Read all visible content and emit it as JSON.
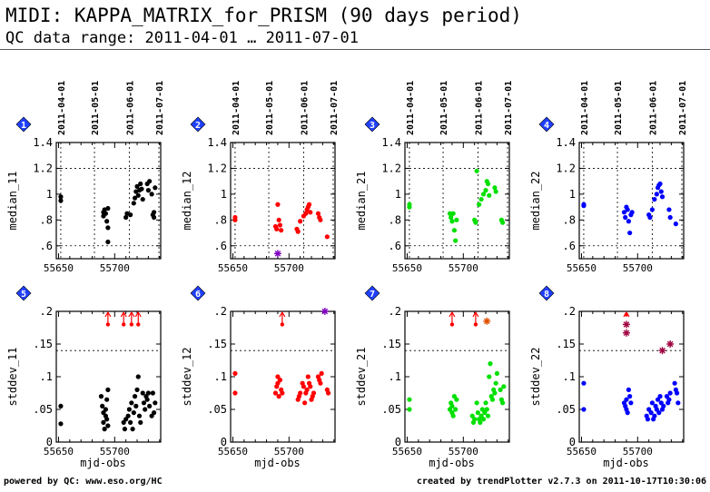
{
  "header": {
    "title": "MIDI: KAPPA_MATRIX_for_PRISM (90 days period)",
    "subtitle": "QC data range: 2011-04-01 … 2011-07-01"
  },
  "footer": {
    "left": "powered by QC: www.eso.org/HC",
    "right": "created by trendPlotter v2.7.3 on 2011-10-17T10:30:06"
  },
  "colors": {
    "black": "#000000",
    "red": "#ff0000",
    "green": "#00e000",
    "blue": "#0000ff",
    "badge": "#2040ff",
    "outlier": "#8000c0"
  },
  "chart_data": [
    {
      "panel": 1,
      "type": "scatter",
      "color": "#000000",
      "ylabel": "median_11",
      "ylim": [
        0.5,
        1.4
      ],
      "yticks": [
        0.6,
        0.8,
        1,
        1.2,
        1.4
      ],
      "xlim": [
        55648,
        55741
      ],
      "xticks": [
        55650,
        55700
      ],
      "ref_lines": [
        0.6,
        1.2
      ],
      "date_ticks": [
        "2011-04-01",
        "2011-05-01",
        "2011-06-01",
        "2011-07-01"
      ],
      "date_mjd": [
        55652,
        55682,
        55713,
        55743
      ],
      "points": [
        [
          55652,
          0.95
        ],
        [
          55652,
          0.98
        ],
        [
          55690,
          0.83
        ],
        [
          55690,
          0.86
        ],
        [
          55691,
          0.88
        ],
        [
          55692,
          0.85
        ],
        [
          55693,
          0.79
        ],
        [
          55694,
          0.74
        ],
        [
          55694,
          0.63
        ],
        [
          55694,
          0.89
        ],
        [
          55710,
          0.82
        ],
        [
          55711,
          0.85
        ],
        [
          55714,
          0.84
        ],
        [
          55717,
          0.93
        ],
        [
          55718,
          0.97
        ],
        [
          55719,
          1.02
        ],
        [
          55720,
          1.06
        ],
        [
          55721,
          0.99
        ],
        [
          55722,
          1.03
        ],
        [
          55723,
          1.08
        ],
        [
          55724,
          1.04
        ],
        [
          55725,
          0.96
        ],
        [
          55729,
          1.08
        ],
        [
          55730,
          1.03
        ],
        [
          55731,
          1.1
        ],
        [
          55733,
          1.0
        ],
        [
          55734,
          0.84
        ],
        [
          55735,
          0.86
        ],
        [
          55735,
          0.82
        ],
        [
          55736,
          1.05
        ]
      ],
      "outliers": []
    },
    {
      "panel": 2,
      "type": "scatter",
      "color": "#ff0000",
      "ylabel": "median_12",
      "ylim": [
        0.5,
        1.4
      ],
      "yticks": [
        0.6,
        0.8,
        1,
        1.2,
        1.4
      ],
      "xlim": [
        55648,
        55741
      ],
      "xticks": [
        55650,
        55700
      ],
      "ref_lines": [
        0.6,
        1.2
      ],
      "date_ticks": [
        "2011-04-01",
        "2011-05-01",
        "2011-06-01",
        "2011-07-01"
      ],
      "date_mjd": [
        55652,
        55682,
        55713,
        55743
      ],
      "points": [
        [
          55652,
          0.8
        ],
        [
          55652,
          0.82
        ],
        [
          55688,
          0.75
        ],
        [
          55689,
          0.73
        ],
        [
          55690,
          0.92
        ],
        [
          55691,
          0.8
        ],
        [
          55692,
          0.76
        ],
        [
          55693,
          0.72
        ],
        [
          55707,
          0.73
        ],
        [
          55708,
          0.71
        ],
        [
          55710,
          0.79
        ],
        [
          55713,
          0.83
        ],
        [
          55715,
          0.85
        ],
        [
          55716,
          0.88
        ],
        [
          55717,
          0.9
        ],
        [
          55718,
          0.92
        ],
        [
          55719,
          0.86
        ],
        [
          55726,
          0.85
        ],
        [
          55727,
          0.82
        ],
        [
          55728,
          0.8
        ],
        [
          55734,
          0.67
        ]
      ],
      "outliers": [
        {
          "x": 55690,
          "y": 0.54,
          "color": "#8000c0"
        }
      ]
    },
    {
      "panel": 3,
      "type": "scatter",
      "color": "#00e000",
      "ylabel": "median_21",
      "ylim": [
        0.5,
        1.4
      ],
      "yticks": [
        0.6,
        0.8,
        1,
        1.2,
        1.4
      ],
      "xlim": [
        55648,
        55741
      ],
      "xticks": [
        55650,
        55700
      ],
      "ref_lines": [
        0.6,
        1.2
      ],
      "date_ticks": [
        "2011-04-01",
        "2011-05-01",
        "2011-06-01",
        "2011-07-01"
      ],
      "date_mjd": [
        55652,
        55682,
        55713,
        55743
      ],
      "points": [
        [
          55652,
          0.9
        ],
        [
          55652,
          0.92
        ],
        [
          55688,
          0.85
        ],
        [
          55689,
          0.82
        ],
        [
          55690,
          0.79
        ],
        [
          55691,
          0.85
        ],
        [
          55692,
          0.72
        ],
        [
          55693,
          0.64
        ],
        [
          55694,
          0.8
        ],
        [
          55710,
          0.8
        ],
        [
          55711,
          0.78
        ],
        [
          55712,
          1.18
        ],
        [
          55714,
          0.92
        ],
        [
          55716,
          0.96
        ],
        [
          55718,
          1.0
        ],
        [
          55720,
          1.03
        ],
        [
          55721,
          1.1
        ],
        [
          55722,
          1.08
        ],
        [
          55723,
          0.99
        ],
        [
          55728,
          1.05
        ],
        [
          55729,
          1.02
        ],
        [
          55734,
          0.8
        ],
        [
          55735,
          0.78
        ]
      ],
      "outliers": []
    },
    {
      "panel": 4,
      "type": "scatter",
      "color": "#0000ff",
      "ylabel": "median_22",
      "ylim": [
        0.5,
        1.4
      ],
      "yticks": [
        0.6,
        0.8,
        1,
        1.2,
        1.4
      ],
      "xlim": [
        55648,
        55741
      ],
      "xticks": [
        55650,
        55700
      ],
      "ref_lines": [
        0.6,
        1.2
      ],
      "date_ticks": [
        "2011-04-01",
        "2011-05-01",
        "2011-06-01",
        "2011-07-01"
      ],
      "date_mjd": [
        55652,
        55682,
        55713,
        55743
      ],
      "points": [
        [
          55652,
          0.91
        ],
        [
          55652,
          0.92
        ],
        [
          55688,
          0.86
        ],
        [
          55689,
          0.82
        ],
        [
          55690,
          0.9
        ],
        [
          55691,
          0.88
        ],
        [
          55692,
          0.79
        ],
        [
          55693,
          0.7
        ],
        [
          55694,
          0.84
        ],
        [
          55695,
          0.86
        ],
        [
          55710,
          0.84
        ],
        [
          55711,
          0.82
        ],
        [
          55713,
          0.88
        ],
        [
          55715,
          0.96
        ],
        [
          55717,
          1.0
        ],
        [
          55718,
          1.05
        ],
        [
          55719,
          1.07
        ],
        [
          55720,
          1.08
        ],
        [
          55721,
          1.02
        ],
        [
          55722,
          0.98
        ],
        [
          55728,
          0.88
        ],
        [
          55729,
          0.82
        ],
        [
          55734,
          0.77
        ]
      ],
      "outliers": []
    },
    {
      "panel": 5,
      "type": "scatter",
      "color": "#000000",
      "ylabel": "stddev_11",
      "xlabel": "mjd-obs",
      "ylim": [
        0,
        0.2
      ],
      "yticks": [
        0,
        0.05,
        0.1,
        0.15,
        0.2
      ],
      "xlim": [
        55648,
        55741
      ],
      "xticks": [
        55650,
        55700
      ],
      "ref_lines": [
        0.14
      ],
      "points": [
        [
          55652,
          0.055
        ],
        [
          55652,
          0.028
        ],
        [
          55688,
          0.07
        ],
        [
          55689,
          0.055
        ],
        [
          55690,
          0.045
        ],
        [
          55690,
          0.03
        ],
        [
          55691,
          0.02
        ],
        [
          55692,
          0.05
        ],
        [
          55692,
          0.04
        ],
        [
          55693,
          0.065
        ],
        [
          55693,
          0.035
        ],
        [
          55694,
          0.025
        ],
        [
          55694,
          0.08
        ],
        [
          55708,
          0.03
        ],
        [
          55709,
          0.02
        ],
        [
          55710,
          0.035
        ],
        [
          55712,
          0.04
        ],
        [
          55713,
          0.05
        ],
        [
          55714,
          0.03
        ],
        [
          55715,
          0.06
        ],
        [
          55716,
          0.02
        ],
        [
          55717,
          0.045
        ],
        [
          55718,
          0.07
        ],
        [
          55719,
          0.055
        ],
        [
          55720,
          0.08
        ],
        [
          55721,
          0.1
        ],
        [
          55722,
          0.04
        ],
        [
          55723,
          0.03
        ],
        [
          55725,
          0.075
        ],
        [
          55726,
          0.06
        ],
        [
          55727,
          0.05
        ],
        [
          55728,
          0.07
        ],
        [
          55729,
          0.065
        ],
        [
          55730,
          0.075
        ],
        [
          55731,
          0.055
        ],
        [
          55733,
          0.04
        ],
        [
          55734,
          0.075
        ],
        [
          55735,
          0.045
        ],
        [
          55736,
          0.06
        ]
      ],
      "outliers": [
        {
          "x": 55694,
          "y": 0.18,
          "arrow": true,
          "color": "#ff0000"
        },
        {
          "x": 55708,
          "y": 0.18,
          "arrow": true,
          "color": "#ff0000"
        },
        {
          "x": 55715,
          "y": 0.18,
          "arrow": true,
          "color": "#ff0000"
        },
        {
          "x": 55721,
          "y": 0.18,
          "arrow": true,
          "color": "#ff0000"
        }
      ]
    },
    {
      "panel": 6,
      "type": "scatter",
      "color": "#ff0000",
      "ylabel": "stddev_12",
      "xlabel": "mjd-obs",
      "ylim": [
        0,
        0.2
      ],
      "yticks": [
        0,
        0.05,
        0.1,
        0.15,
        0.2
      ],
      "xlim": [
        55648,
        55741
      ],
      "xticks": [
        55650,
        55700
      ],
      "ref_lines": [
        0.14
      ],
      "points": [
        [
          55652,
          0.105
        ],
        [
          55652,
          0.075
        ],
        [
          55688,
          0.075
        ],
        [
          55689,
          0.085
        ],
        [
          55690,
          0.1
        ],
        [
          55690,
          0.09
        ],
        [
          55691,
          0.07
        ],
        [
          55692,
          0.095
        ],
        [
          55693,
          0.08
        ],
        [
          55694,
          0.075
        ],
        [
          55708,
          0.065
        ],
        [
          55709,
          0.07
        ],
        [
          55710,
          0.075
        ],
        [
          55712,
          0.09
        ],
        [
          55713,
          0.085
        ],
        [
          55714,
          0.06
        ],
        [
          55715,
          0.075
        ],
        [
          55716,
          0.08
        ],
        [
          55717,
          0.1
        ],
        [
          55718,
          0.09
        ],
        [
          55719,
          0.085
        ],
        [
          55720,
          0.065
        ],
        [
          55721,
          0.07
        ],
        [
          55722,
          0.075
        ],
        [
          55726,
          0.1
        ],
        [
          55727,
          0.095
        ],
        [
          55728,
          0.09
        ],
        [
          55729,
          0.105
        ],
        [
          55734,
          0.08
        ],
        [
          55735,
          0.075
        ]
      ],
      "outliers": [
        {
          "x": 55694,
          "y": 0.18,
          "arrow": true,
          "color": "#ff0000"
        },
        {
          "x": 55732,
          "y": 0.2,
          "color": "#8000c0"
        }
      ]
    },
    {
      "panel": 7,
      "type": "scatter",
      "color": "#00e000",
      "ylabel": "stddev_21",
      "xlabel": "mjd-obs",
      "ylim": [
        0,
        0.2
      ],
      "yticks": [
        0,
        0.05,
        0.1,
        0.15,
        0.2
      ],
      "xlim": [
        55648,
        55741
      ],
      "xticks": [
        55650,
        55700
      ],
      "ref_lines": [
        0.14
      ],
      "points": [
        [
          55652,
          0.065
        ],
        [
          55652,
          0.05
        ],
        [
          55688,
          0.05
        ],
        [
          55689,
          0.06
        ],
        [
          55690,
          0.045
        ],
        [
          55690,
          0.055
        ],
        [
          55691,
          0.04
        ],
        [
          55692,
          0.07
        ],
        [
          55693,
          0.05
        ],
        [
          55694,
          0.065
        ],
        [
          55708,
          0.04
        ],
        [
          55709,
          0.03
        ],
        [
          55710,
          0.035
        ],
        [
          55712,
          0.06
        ],
        [
          55713,
          0.045
        ],
        [
          55714,
          0.035
        ],
        [
          55715,
          0.03
        ],
        [
          55716,
          0.04
        ],
        [
          55717,
          0.05
        ],
        [
          55718,
          0.035
        ],
        [
          55719,
          0.045
        ],
        [
          55720,
          0.06
        ],
        [
          55721,
          0.05
        ],
        [
          55722,
          0.04
        ],
        [
          55723,
          0.1
        ],
        [
          55724,
          0.12
        ],
        [
          55725,
          0.07
        ],
        [
          55726,
          0.065
        ],
        [
          55727,
          0.08
        ],
        [
          55728,
          0.075
        ],
        [
          55729,
          0.09
        ],
        [
          55730,
          0.105
        ],
        [
          55733,
          0.08
        ],
        [
          55734,
          0.065
        ],
        [
          55735,
          0.06
        ],
        [
          55736,
          0.085
        ]
      ],
      "outliers": [
        {
          "x": 55690,
          "y": 0.18,
          "arrow": true,
          "color": "#ff0000"
        },
        {
          "x": 55711,
          "y": 0.18,
          "arrow": true,
          "color": "#ff0000"
        },
        {
          "x": 55721,
          "y": 0.185,
          "color": "#e05000"
        }
      ]
    },
    {
      "panel": 8,
      "type": "scatter",
      "color": "#0000ff",
      "ylabel": "stddev_22",
      "xlabel": "mjd-obs",
      "ylim": [
        0,
        0.2
      ],
      "yticks": [
        0,
        0.05,
        0.1,
        0.15,
        0.2
      ],
      "xlim": [
        55648,
        55741
      ],
      "xticks": [
        55650,
        55700
      ],
      "ref_lines": [
        0.14
      ],
      "points": [
        [
          55652,
          0.09
        ],
        [
          55652,
          0.05
        ],
        [
          55688,
          0.06
        ],
        [
          55689,
          0.055
        ],
        [
          55690,
          0.05
        ],
        [
          55690,
          0.065
        ],
        [
          55691,
          0.045
        ],
        [
          55692,
          0.08
        ],
        [
          55693,
          0.07
        ],
        [
          55694,
          0.06
        ],
        [
          55708,
          0.04
        ],
        [
          55709,
          0.035
        ],
        [
          55710,
          0.05
        ],
        [
          55712,
          0.045
        ],
        [
          55713,
          0.06
        ],
        [
          55714,
          0.035
        ],
        [
          55715,
          0.04
        ],
        [
          55716,
          0.055
        ],
        [
          55717,
          0.05
        ],
        [
          55718,
          0.065
        ],
        [
          55719,
          0.045
        ],
        [
          55720,
          0.07
        ],
        [
          55721,
          0.06
        ],
        [
          55722,
          0.05
        ],
        [
          55723,
          0.055
        ],
        [
          55726,
          0.07
        ],
        [
          55727,
          0.06
        ],
        [
          55728,
          0.065
        ],
        [
          55729,
          0.075
        ],
        [
          55733,
          0.09
        ],
        [
          55734,
          0.08
        ],
        [
          55735,
          0.075
        ],
        [
          55736,
          0.06
        ]
      ],
      "outliers": [
        {
          "x": 55690,
          "y": 0.18,
          "color": "#a00040"
        },
        {
          "x": 55690,
          "y": 0.167,
          "color": "#a00040"
        },
        {
          "x": 55722,
          "y": 0.14,
          "color": "#a00040"
        },
        {
          "x": 55729,
          "y": 0.15,
          "color": "#a00040"
        },
        {
          "x": 55690,
          "y": 0.195,
          "arrow": true,
          "color": "#ff0000"
        }
      ]
    }
  ]
}
